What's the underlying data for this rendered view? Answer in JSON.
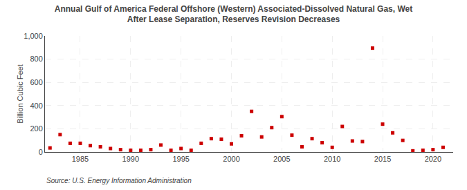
{
  "chart_data": {
    "type": "scatter",
    "title": "Annual Gulf of America Federal Offshore (Western) Associated-Dissolved Natural Gas, Wet\nAfter Lease Separation, Reserves Revision Decreases",
    "y_label": "Billion Cubic Feet",
    "annotations": [
      "Source: U.S. Energy Information Administration"
    ],
    "x": [
      1982,
      1983,
      1984,
      1985,
      1986,
      1987,
      1988,
      1989,
      1990,
      1991,
      1992,
      1993,
      1994,
      1995,
      1996,
      1997,
      1998,
      1999,
      2000,
      2001,
      2002,
      2003,
      2004,
      2005,
      2006,
      2007,
      2008,
      2009,
      2010,
      2011,
      2012,
      2013,
      2014,
      2015,
      2016,
      2017,
      2018,
      2019,
      2020,
      2021
    ],
    "values": [
      35,
      150,
      75,
      75,
      55,
      45,
      30,
      20,
      15,
      15,
      20,
      60,
      15,
      30,
      15,
      75,
      115,
      110,
      70,
      140,
      350,
      130,
      210,
      305,
      145,
      45,
      115,
      80,
      40,
      220,
      95,
      90,
      895,
      240,
      165,
      100,
      10,
      15,
      20,
      40
    ],
    "color": "#cc0000",
    "marker": "square",
    "xlim": [
      1981.5,
      2022
    ],
    "xticks": [
      1985,
      1990,
      1995,
      2000,
      2005,
      2010,
      2015,
      2020
    ],
    "ylim": [
      0,
      1000
    ],
    "yticks": [
      0,
      200,
      400,
      600,
      800,
      {
        "value": 1000,
        "label": "1,000"
      }
    ],
    "grid": true
  }
}
